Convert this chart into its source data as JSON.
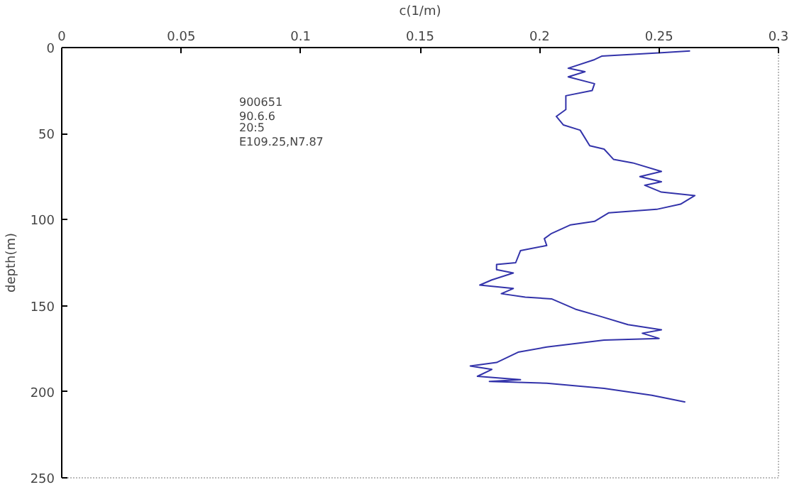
{
  "chart_data": {
    "type": "line",
    "xlabel": "c(1/m)",
    "ylabel": "depth(m)",
    "xlim": [
      0,
      0.3
    ],
    "xticks": [
      0,
      0.05,
      0.1,
      0.15,
      0.2,
      0.25,
      0.3
    ],
    "ylim": [
      250,
      0
    ],
    "yticks": [
      0,
      50,
      100,
      150,
      200,
      250
    ],
    "grid": false,
    "marker": "none",
    "line_style": "solid",
    "annotations": [
      "900651",
      "90.6.6",
      "20:5",
      "E109.25,N7.87"
    ],
    "series": [
      {
        "color": "#3333aa",
        "x": [
          0.263,
          0.251,
          0.226,
          0.223,
          0.212,
          0.219,
          0.212,
          0.223,
          0.222,
          0.211,
          0.211,
          0.207,
          0.21,
          0.217,
          0.221,
          0.227,
          0.231,
          0.239,
          0.251,
          0.242,
          0.251,
          0.244,
          0.251,
          0.265,
          0.259,
          0.249,
          0.229,
          0.223,
          0.213,
          0.205,
          0.202,
          0.203,
          0.192,
          0.19,
          0.182,
          0.182,
          0.189,
          0.18,
          0.175,
          0.189,
          0.184,
          0.194,
          0.205,
          0.215,
          0.225,
          0.237,
          0.251,
          0.243,
          0.25,
          0.227,
          0.203,
          0.191,
          0.182,
          0.171,
          0.18,
          0.174,
          0.192,
          0.179,
          0.203,
          0.227,
          0.247,
          0.261
        ],
        "values": [
          2,
          3,
          5,
          7,
          12,
          14,
          17,
          21,
          25,
          28,
          36,
          40,
          45,
          48,
          57,
          59,
          65,
          67,
          72,
          75,
          78,
          80,
          84,
          86,
          91,
          94,
          96,
          101,
          103,
          108,
          111,
          115,
          118,
          125,
          126,
          129,
          131,
          135,
          138,
          140,
          143,
          145,
          146,
          152,
          156,
          161,
          164,
          166,
          169,
          170,
          174,
          177,
          183,
          185,
          187,
          191,
          193,
          194,
          195,
          198,
          202,
          206
        ]
      }
    ]
  }
}
